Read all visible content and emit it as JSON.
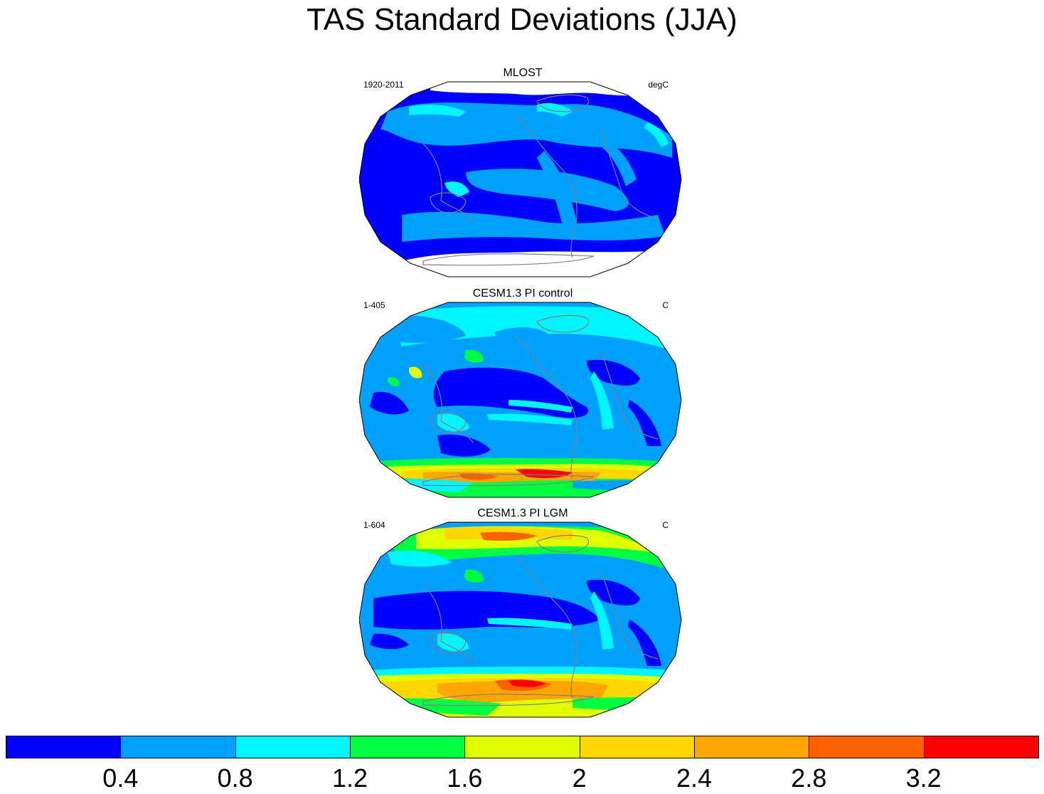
{
  "title": "TAS Standard Deviations (JJA)",
  "panels": [
    {
      "title": "MLOST",
      "left_label": "1920-2011",
      "right_label": "degC"
    },
    {
      "title": "CESM1.3 PI control",
      "left_label": "1-405",
      "right_label": "C"
    },
    {
      "title": "CESM1.3 PI LGM",
      "left_label": "1-604",
      "right_label": "C"
    }
  ],
  "colorbar": {
    "colors": [
      "#0000ff",
      "#00a0ff",
      "#00f5ff",
      "#00ff40",
      "#dfff00",
      "#ffd700",
      "#ffa500",
      "#ff6000",
      "#ff0000"
    ],
    "ticks": [
      "0.4",
      "0.8",
      "1.2",
      "1.6",
      "2",
      "2.4",
      "2.8",
      "3.2"
    ]
  }
}
